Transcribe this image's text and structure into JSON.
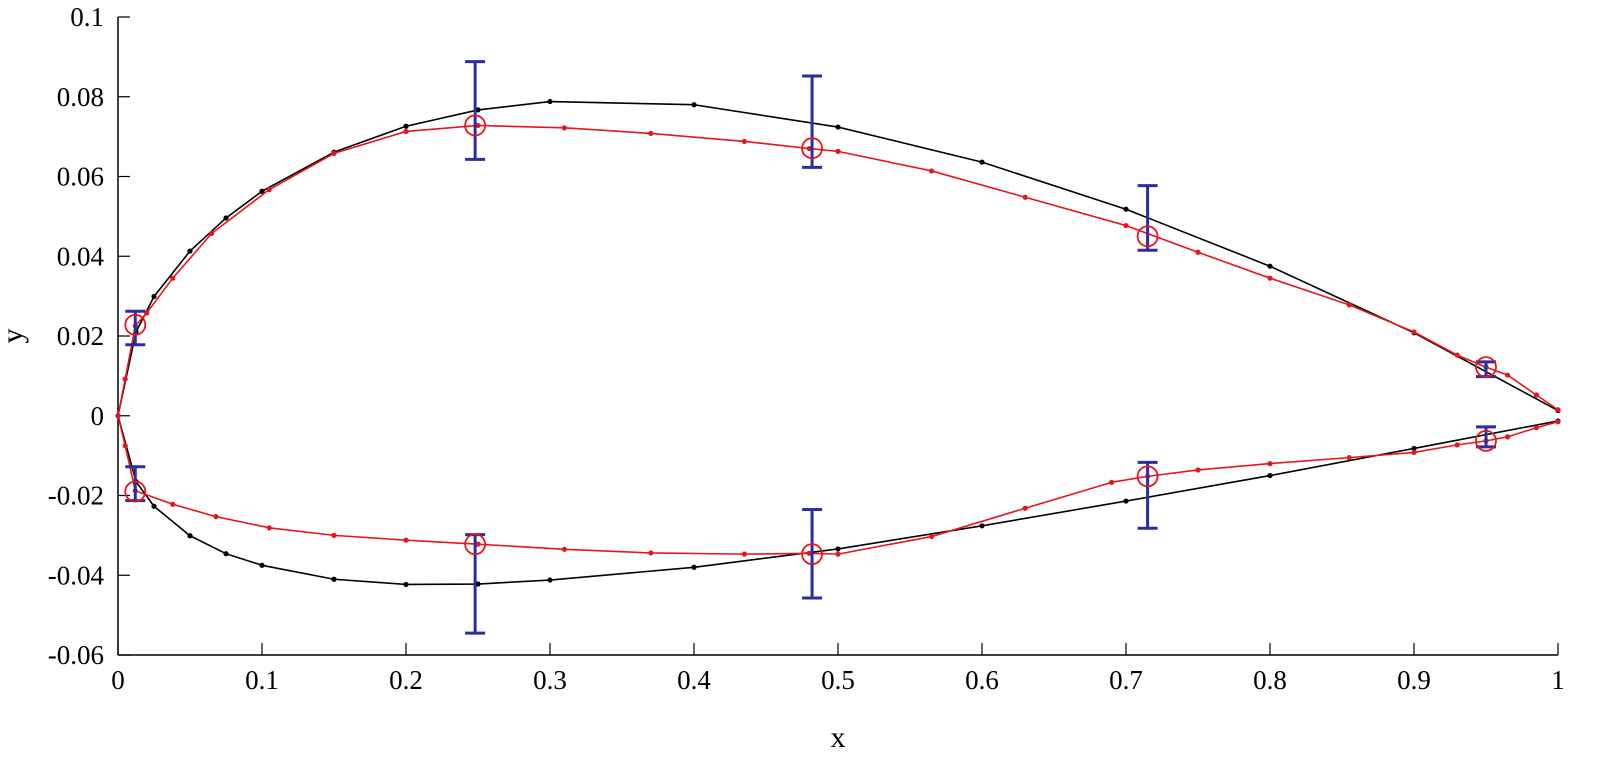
{
  "chart_data": {
    "type": "line",
    "xlabel": "x",
    "ylabel": "y",
    "xlim": [
      0,
      1
    ],
    "ylim": [
      -0.06,
      0.1
    ],
    "xticks": [
      0,
      0.1,
      0.2,
      0.3,
      0.4,
      0.5,
      0.6,
      0.7,
      0.8,
      0.9,
      1
    ],
    "xtick_labels": [
      "0",
      "0.1",
      "0.2",
      "0.3",
      "0.4",
      "0.5",
      "0.6",
      "0.7",
      "0.8",
      "0.9",
      "1"
    ],
    "yticks": [
      -0.06,
      -0.04,
      -0.02,
      0,
      0.02,
      0.04,
      0.06,
      0.08,
      0.1
    ],
    "ytick_labels": [
      "-0.06",
      "-0.04",
      "-0.02",
      "0",
      "0.02",
      "0.04",
      "0.06",
      "0.08",
      "0.1"
    ],
    "grid": false,
    "legend": null,
    "series": [
      {
        "color": "#000000",
        "marker": "dot",
        "x": [
          1,
          0.9,
          0.8,
          0.7,
          0.6,
          0.5,
          0.4,
          0.3,
          0.25,
          0.2,
          0.15,
          0.1,
          0.075,
          0.05,
          0.025,
          0.0125,
          0,
          0.0125,
          0.025,
          0.05,
          0.075,
          0.1,
          0.15,
          0.2,
          0.25,
          0.3,
          0.4,
          0.5,
          0.6,
          0.7,
          0.8,
          0.9,
          1
        ],
        "y": [
          0.0013,
          0.0208,
          0.0375,
          0.0518,
          0.0636,
          0.0724,
          0.078,
          0.0788,
          0.0767,
          0.0726,
          0.0661,
          0.0563,
          0.0496,
          0.0413,
          0.0299,
          0.021,
          0,
          -0.0165,
          -0.0227,
          -0.0301,
          -0.0346,
          -0.0375,
          -0.041,
          -0.0423,
          -0.0422,
          -0.0412,
          -0.038,
          -0.0334,
          -0.0276,
          -0.0214,
          -0.015,
          -0.0082,
          -0.0013
        ]
      },
      {
        "color": "#e8161c",
        "marker": "dot",
        "x": [
          1,
          0.985,
          0.965,
          0.95,
          0.93,
          0.9,
          0.855,
          0.8,
          0.75,
          0.7,
          0.63,
          0.565,
          0.5,
          0.48,
          0.435,
          0.37,
          0.31,
          0.25,
          0.2,
          0.15,
          0.105,
          0.065,
          0.038,
          0.02,
          0.012,
          0.005,
          0,
          0.005,
          0.012,
          0.038,
          0.068,
          0.105,
          0.15,
          0.2,
          0.25,
          0.31,
          0.37,
          0.435,
          0.48,
          0.5,
          0.565,
          0.63,
          0.69,
          0.715,
          0.75,
          0.8,
          0.855,
          0.9,
          0.93,
          0.95,
          0.965,
          0.985,
          1
        ],
        "y": [
          0.0015,
          0.0052,
          0.0102,
          0.0122,
          0.0152,
          0.021,
          0.0278,
          0.0345,
          0.041,
          0.0477,
          0.0548,
          0.0614,
          0.0663,
          0.067,
          0.0688,
          0.0708,
          0.0722,
          0.0728,
          0.0713,
          0.0658,
          0.0567,
          0.0457,
          0.0345,
          0.0258,
          0.0225,
          0.0092,
          0,
          -0.0075,
          -0.0188,
          -0.0222,
          -0.0253,
          -0.0281,
          -0.03,
          -0.0312,
          -0.0322,
          -0.0335,
          -0.0344,
          -0.0347,
          -0.0345,
          -0.0347,
          -0.0303,
          -0.0232,
          -0.0167,
          -0.0152,
          -0.0136,
          -0.012,
          -0.0105,
          -0.0092,
          -0.0073,
          -0.0063,
          -0.0053,
          -0.003,
          -0.0015
        ]
      }
    ],
    "circle_markers": {
      "color": "#e8161c",
      "x": [
        0.012,
        0.248,
        0.482,
        0.715,
        0.95,
        0.012,
        0.248,
        0.482,
        0.715,
        0.95
      ],
      "y": [
        0.0228,
        0.0728,
        0.0671,
        0.045,
        0.0122,
        -0.019,
        -0.0322,
        -0.0347,
        -0.0152,
        -0.0063
      ]
    },
    "error_bars": {
      "color": "#2a2ea0",
      "x": [
        0.012,
        0.248,
        0.482,
        0.715,
        0.95,
        0.012,
        0.248,
        0.482,
        0.715,
        0.95
      ],
      "low": [
        0.0178,
        0.0643,
        0.0623,
        0.0415,
        0.0098,
        -0.0213,
        -0.0545,
        -0.0457,
        -0.0282,
        -0.0078
      ],
      "high": [
        0.0262,
        0.0888,
        0.0852,
        0.0577,
        0.0135,
        -0.0128,
        -0.0298,
        -0.0235,
        -0.0117,
        -0.0028
      ]
    }
  }
}
